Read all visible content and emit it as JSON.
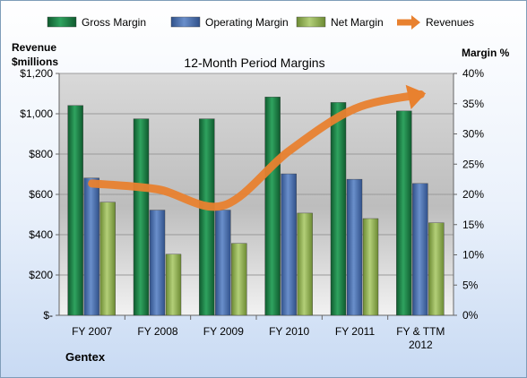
{
  "chart_data": {
    "type": "bar",
    "title": "12-Month Period Margins",
    "company_label": "Gentex",
    "left_axis_label_line1": "Revenue",
    "left_axis_label_line2": "$millions",
    "right_axis_label": "Margin %",
    "categories": [
      [
        "FY 2007"
      ],
      [
        "FY 2008"
      ],
      [
        "FY 2009"
      ],
      [
        "FY 2010"
      ],
      [
        "FY 2011"
      ],
      [
        "FY & TTM",
        "2012"
      ]
    ],
    "left_ticks": [
      "$-",
      "$200",
      "$400",
      "$600",
      "$800",
      "$1,000",
      "$1,200"
    ],
    "right_ticks": [
      "0%",
      "5%",
      "10%",
      "15%",
      "20%",
      "25%",
      "30%",
      "35%",
      "40%"
    ],
    "ylim_left": [
      0,
      1200
    ],
    "ylim_right": [
      0,
      40
    ],
    "legend_position": "top",
    "series": [
      {
        "name": "Gross Margin",
        "axis": "right",
        "kind": "bar",
        "color": "#1e7b45",
        "values": [
          34.7,
          32.5,
          32.5,
          36.1,
          35.2,
          33.8
        ]
      },
      {
        "name": "Operating Margin",
        "axis": "right",
        "kind": "bar",
        "color": "#4a6fae",
        "values": [
          22.7,
          17.4,
          17.4,
          23.4,
          22.5,
          21.8
        ]
      },
      {
        "name": "Net Margin",
        "axis": "right",
        "kind": "bar",
        "color": "#8fb052",
        "values": [
          18.7,
          10.1,
          11.9,
          16.9,
          16.0,
          15.3
        ]
      },
      {
        "name": "Revenues",
        "axis": "left",
        "kind": "line",
        "color": "#e8812f",
        "values": [
          654,
          625,
          545,
          816,
          1025,
          1096
        ]
      }
    ]
  }
}
